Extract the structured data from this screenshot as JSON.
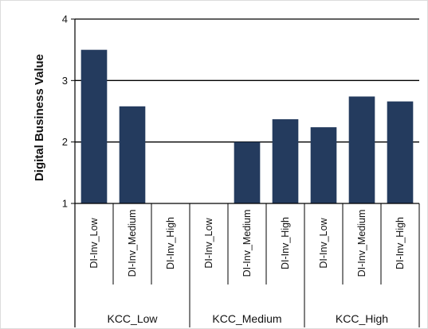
{
  "chart_data": {
    "type": "bar",
    "ylabel": "Digital Business Value",
    "xlabel": "",
    "title": "",
    "ylim": [
      1,
      4
    ],
    "yticks": [
      1,
      2,
      3,
      4
    ],
    "grid": "horizontal major gridlines",
    "bar_color": "#243B5E",
    "groups": [
      {
        "label": "KCC_Low",
        "categories": [
          "DI-Inv_Low",
          "DI-Inv_Medium",
          "DI-Inv_High"
        ],
        "values": [
          3.5,
          2.58,
          null
        ]
      },
      {
        "label": "KCC_Medium",
        "categories": [
          "DI-Inv_Low",
          "DI-Inv_Medium",
          "DI-Inv_High"
        ],
        "values": [
          null,
          2.0,
          2.37
        ]
      },
      {
        "label": "KCC_High",
        "categories": [
          "DI-Inv_Low",
          "DI-Inv_Medium",
          "DI-Inv_High"
        ],
        "values": [
          2.24,
          2.74,
          2.66
        ]
      }
    ]
  }
}
